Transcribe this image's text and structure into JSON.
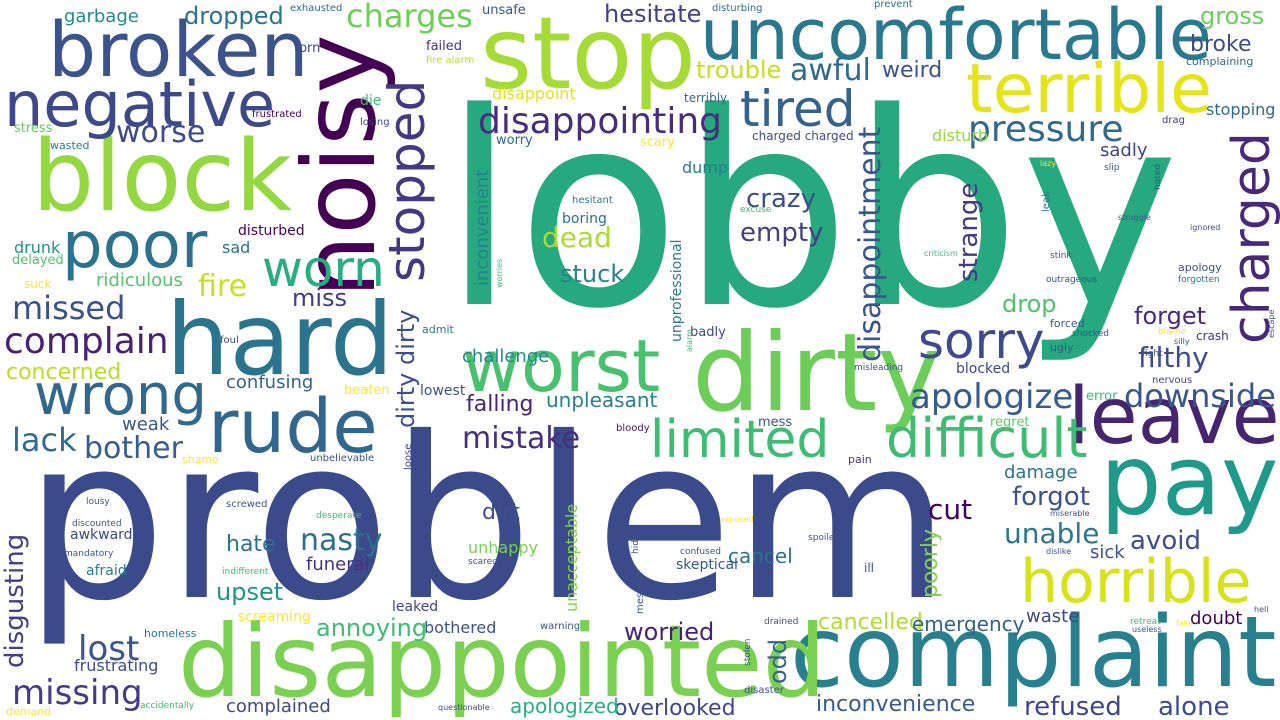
{
  "words": [
    {
      "t": "lobby",
      "c": "#26a97f"
    },
    {
      "t": "problem",
      "c": "#3b4a8a"
    },
    {
      "t": "dirty",
      "c": "#6cce59"
    },
    {
      "t": "complaint",
      "c": "#287f8e"
    },
    {
      "t": "disappointed",
      "c": "#7ad151"
    },
    {
      "t": "stop",
      "c": "#a5db36"
    },
    {
      "t": "noisy",
      "c": "#440154"
    },
    {
      "t": "leave",
      "c": "#46246e"
    },
    {
      "t": "pay",
      "c": "#1f9a8a"
    },
    {
      "t": "block",
      "c": "#93d741"
    },
    {
      "t": "hard",
      "c": "#2b748e"
    },
    {
      "t": "uncomfortable",
      "c": "#2a788e"
    },
    {
      "t": "broken",
      "c": "#3b528b"
    },
    {
      "t": "worst",
      "c": "#47c16e"
    },
    {
      "t": "rude",
      "c": "#31668e"
    },
    {
      "t": "terrible",
      "c": "#e5e419"
    },
    {
      "t": "negative",
      "c": "#3e4989"
    },
    {
      "t": "poor",
      "c": "#2c718e"
    },
    {
      "t": "horrible",
      "c": "#d8e219"
    },
    {
      "t": "charged",
      "c": "#482878"
    },
    {
      "t": "stopped",
      "c": "#453781"
    },
    {
      "t": "wrong",
      "c": "#31688e"
    },
    {
      "t": "difficult",
      "c": "#3fbc73"
    },
    {
      "t": "limited",
      "c": "#3dbc74"
    },
    {
      "t": "worn",
      "c": "#27ad81"
    },
    {
      "t": "tired",
      "c": "#34618d"
    },
    {
      "t": "sorry",
      "c": "#3e4a89"
    },
    {
      "t": "disappointing",
      "c": "#472d7b"
    },
    {
      "t": "pressure",
      "c": "#31688e"
    },
    {
      "t": "disappointment",
      "c": "#3a548c"
    },
    {
      "t": "mistake",
      "c": "#46307e"
    },
    {
      "t": "apologize",
      "c": "#365c8d"
    },
    {
      "t": "downside",
      "c": "#39558c"
    },
    {
      "t": "missing",
      "c": "#443b84"
    },
    {
      "t": "complain",
      "c": "#482173"
    },
    {
      "t": "lost",
      "c": "#3a548c"
    },
    {
      "t": "awful",
      "c": "#2f6b8e"
    },
    {
      "t": "missed",
      "c": "#3b518b"
    },
    {
      "t": "lack",
      "c": "#2f6c8e"
    },
    {
      "t": "worse",
      "c": "#3e4c8a"
    },
    {
      "t": "bother",
      "c": "#365d8d"
    },
    {
      "t": "filthy",
      "c": "#3e4c8a"
    },
    {
      "t": "fire",
      "c": "#c8e020"
    },
    {
      "t": "dirty dirty",
      "c": "#3d4e8a"
    },
    {
      "t": "strange",
      "c": "#443a83"
    },
    {
      "t": "charges",
      "c": "#6ece58"
    },
    {
      "t": "nasty",
      "c": "#2d708e"
    },
    {
      "t": "unable",
      "c": "#2a788e"
    },
    {
      "t": "avoid",
      "c": "#3c4f8a"
    },
    {
      "t": "empty",
      "c": "#433d84"
    },
    {
      "t": "crazy",
      "c": "#3c4f8a"
    },
    {
      "t": "dead",
      "c": "#addc30"
    },
    {
      "t": "disgusting",
      "c": "#424086"
    },
    {
      "t": "trouble",
      "c": "#c5e021"
    },
    {
      "t": "forgot",
      "c": "#3b528b"
    },
    {
      "t": "forget",
      "c": "#482979"
    },
    {
      "t": "annoying",
      "c": "#3dbc74"
    },
    {
      "t": "alone",
      "c": "#3e4c8a"
    },
    {
      "t": "refused",
      "c": "#3f4788"
    },
    {
      "t": "inconvenience",
      "c": "#365c8d"
    },
    {
      "t": "cancelled",
      "c": "#b2dd2d"
    },
    {
      "t": "emergency",
      "c": "#33638d"
    },
    {
      "t": "overlooked",
      "c": "#3f4788"
    },
    {
      "t": "apologized",
      "c": "#29af7f"
    },
    {
      "t": "worried",
      "c": "#482173"
    },
    {
      "t": "odd",
      "c": "#33638d"
    },
    {
      "t": "stuck",
      "c": "#26818e"
    },
    {
      "t": "miss",
      "c": "#443a83"
    },
    {
      "t": "dropped",
      "c": "#2c728e"
    },
    {
      "t": "hesitate",
      "c": "#424086"
    },
    {
      "t": "broke",
      "c": "#3e4c8a"
    },
    {
      "t": "gross",
      "c": "#6ccd5a"
    },
    {
      "t": "weird",
      "c": "#3b528b"
    },
    {
      "t": "hate",
      "c": "#2c728e"
    },
    {
      "t": "upset",
      "c": "#20928c"
    },
    {
      "t": "cut",
      "c": "#440256"
    },
    {
      "t": "concerned",
      "c": "#bade28"
    },
    {
      "t": "confusing",
      "c": "#33628d"
    },
    {
      "t": "ridiculous",
      "c": "#52c569"
    },
    {
      "t": "falling",
      "c": "#482475"
    },
    {
      "t": "unpleasant",
      "c": "#27808e"
    },
    {
      "t": "cancel",
      "c": "#2c728e"
    },
    {
      "t": "funeral",
      "c": "#46337f"
    },
    {
      "t": "drop",
      "c": "#4ec36b"
    },
    {
      "t": "sick",
      "c": "#3b518b"
    },
    {
      "t": "damage",
      "c": "#2c728e"
    },
    {
      "t": "doubt",
      "c": "#440154"
    },
    {
      "t": "waste",
      "c": "#3f4788"
    },
    {
      "t": "challenge",
      "c": "#238a8d"
    },
    {
      "t": "dirt",
      "c": "#3c4f8a"
    },
    {
      "t": "unhappy",
      "c": "#7ad151"
    },
    {
      "t": "unacceptable",
      "c": "#7fd34e"
    },
    {
      "t": "poorly",
      "c": "#7fd34e"
    },
    {
      "t": "inconvenient",
      "c": "#27808e"
    },
    {
      "t": "unprofessional",
      "c": "#2a788e"
    },
    {
      "t": "bothered",
      "c": "#3b528b"
    },
    {
      "t": "complained",
      "c": "#3e4989"
    },
    {
      "t": "frustrating",
      "c": "#3e4c8a"
    },
    {
      "t": "garbage",
      "c": "#238a8d"
    },
    {
      "t": "weak",
      "c": "#3a548c"
    },
    {
      "t": "sadly",
      "c": "#404588"
    },
    {
      "t": "blocked",
      "c": "#3f4788"
    },
    {
      "t": "disturb",
      "c": "#95d840"
    },
    {
      "t": "disappoint",
      "c": "#e3e418"
    },
    {
      "t": "worry",
      "c": "#31668e"
    },
    {
      "t": "dump",
      "c": "#287d8e"
    },
    {
      "t": "boring",
      "c": "#2c718e"
    },
    {
      "t": "sad",
      "c": "#2e6e8e"
    },
    {
      "t": "drunk",
      "c": "#20928c"
    },
    {
      "t": "delayed",
      "c": "#50c46a"
    },
    {
      "t": "disturbed",
      "c": "#440154"
    },
    {
      "t": "leaked",
      "c": "#3f4788"
    },
    {
      "t": "screaming",
      "c": "#fde725"
    },
    {
      "t": "awkward",
      "c": "#3f4788"
    },
    {
      "t": "afraid",
      "c": "#287d8e"
    },
    {
      "t": "skeptical",
      "c": "#39568c"
    },
    {
      "t": "lowest",
      "c": "#3a548c"
    },
    {
      "t": "stopping",
      "c": "#31688e"
    },
    {
      "t": "die",
      "c": "#3dbc74"
    },
    {
      "t": "stress",
      "c": "#5ec962"
    },
    {
      "t": "suck",
      "c": "#fde725"
    },
    {
      "t": "scary",
      "c": "#fde725"
    },
    {
      "t": "unsafe",
      "c": "#3b528b"
    },
    {
      "t": "torn",
      "c": "#414487"
    },
    {
      "t": "failed",
      "c": "#46337f"
    },
    {
      "t": "exhausted",
      "c": "#31688e"
    },
    {
      "t": "prevent",
      "c": "#2c728e"
    },
    {
      "t": "disturbing",
      "c": "#31688e"
    },
    {
      "t": "complaining",
      "c": "#31688e"
    },
    {
      "t": "wasted",
      "c": "#287d8e"
    },
    {
      "t": "fire alarm",
      "c": "#b5de2b"
    },
    {
      "t": "losing",
      "c": "#3e4989"
    },
    {
      "t": "frustrated",
      "c": "#440154"
    },
    {
      "t": "terribly",
      "c": "#31688e"
    },
    {
      "t": "charged charged",
      "c": "#3e4989"
    },
    {
      "t": "drag",
      "c": "#443983"
    },
    {
      "t": "crash",
      "c": "#46337f"
    },
    {
      "t": "mess",
      "c": "#3b528b"
    },
    {
      "t": "regret",
      "c": "#5ec962"
    },
    {
      "t": "error",
      "c": "#3dbc74"
    },
    {
      "t": "nervous",
      "c": "#404688"
    },
    {
      "t": "beaten",
      "c": "#fde725"
    },
    {
      "t": "shame",
      "c": "#fde725"
    },
    {
      "t": "foul",
      "c": "#414487"
    },
    {
      "t": "admit",
      "c": "#2a788e"
    },
    {
      "t": "bloody",
      "c": "#471063"
    },
    {
      "t": "badly",
      "c": "#3e4989"
    },
    {
      "t": "pain",
      "c": "#46337f"
    },
    {
      "t": "ill",
      "c": "#3b528b"
    },
    {
      "t": "loose",
      "c": "#3e4989"
    },
    {
      "t": "unbelievable",
      "c": "#3b528b"
    },
    {
      "t": "desperate",
      "c": "#3dbc74"
    },
    {
      "t": "indifferent",
      "c": "#3dbc74"
    },
    {
      "t": "screwed",
      "c": "#3b528b"
    },
    {
      "t": "discounted",
      "c": "#3b528b"
    },
    {
      "t": "mandatory",
      "c": "#3b528b"
    },
    {
      "t": "lousy",
      "c": "#3b528b"
    },
    {
      "t": "homeless",
      "c": "#2a788e"
    },
    {
      "t": "accidentally",
      "c": "#3dbc74"
    },
    {
      "t": "demand",
      "c": "#fde725"
    },
    {
      "t": "questionable",
      "c": "#3b528b"
    },
    {
      "t": "warning",
      "c": "#3b528b"
    },
    {
      "t": "disaster",
      "c": "#3b528b"
    },
    {
      "t": "drained",
      "c": "#3b528b"
    },
    {
      "t": "stolen",
      "c": "#3b528b"
    },
    {
      "t": "messed",
      "c": "#3b528b"
    },
    {
      "t": "hide",
      "c": "#3b528b"
    },
    {
      "t": "confused",
      "c": "#3b528b"
    },
    {
      "t": "scared",
      "c": "#3b528b"
    },
    {
      "t": "exposed",
      "c": "#fde725"
    },
    {
      "t": "spoiled",
      "c": "#3b528b"
    },
    {
      "t": "misleading",
      "c": "#3b528b"
    },
    {
      "t": "alarm",
      "c": "#3dbc74"
    },
    {
      "t": "excuse",
      "c": "#3dbc74"
    },
    {
      "t": "criticism",
      "c": "#3dbc74"
    },
    {
      "t": "hesitant",
      "c": "#2a788e"
    },
    {
      "t": "worries",
      "c": "#3dbc74"
    },
    {
      "t": "lazy",
      "c": "#fde725"
    },
    {
      "t": "slip",
      "c": "#3b528b"
    },
    {
      "t": "hated",
      "c": "#3b528b"
    },
    {
      "t": "leak",
      "c": "#2a788e"
    },
    {
      "t": "struggle",
      "c": "#3b528b"
    },
    {
      "t": "ignored",
      "c": "#3b528b"
    },
    {
      "t": "stink",
      "c": "#3b528b"
    },
    {
      "t": "outrageous",
      "c": "#3b528b"
    },
    {
      "t": "apology",
      "c": "#3b528b"
    },
    {
      "t": "forgotten",
      "c": "#2a788e"
    },
    {
      "t": "forced",
      "c": "#3b528b"
    },
    {
      "t": "shocked",
      "c": "#3b528b"
    },
    {
      "t": "blame",
      "c": "#fde725"
    },
    {
      "t": "silly",
      "c": "#3b528b"
    },
    {
      "t": "ugly",
      "c": "#3b528b"
    },
    {
      "t": "fight",
      "c": "#3b528b"
    },
    {
      "t": "miserable",
      "c": "#3b528b"
    },
    {
      "t": "dislike",
      "c": "#3b528b"
    },
    {
      "t": "escape",
      "c": "#3b528b"
    },
    {
      "t": "retreat",
      "c": "#3dbc74"
    },
    {
      "t": "useless",
      "c": "#3b528b"
    },
    {
      "t": "hell",
      "c": "#3b528b"
    },
    {
      "t": "fake",
      "c": "#fde725"
    }
  ]
}
